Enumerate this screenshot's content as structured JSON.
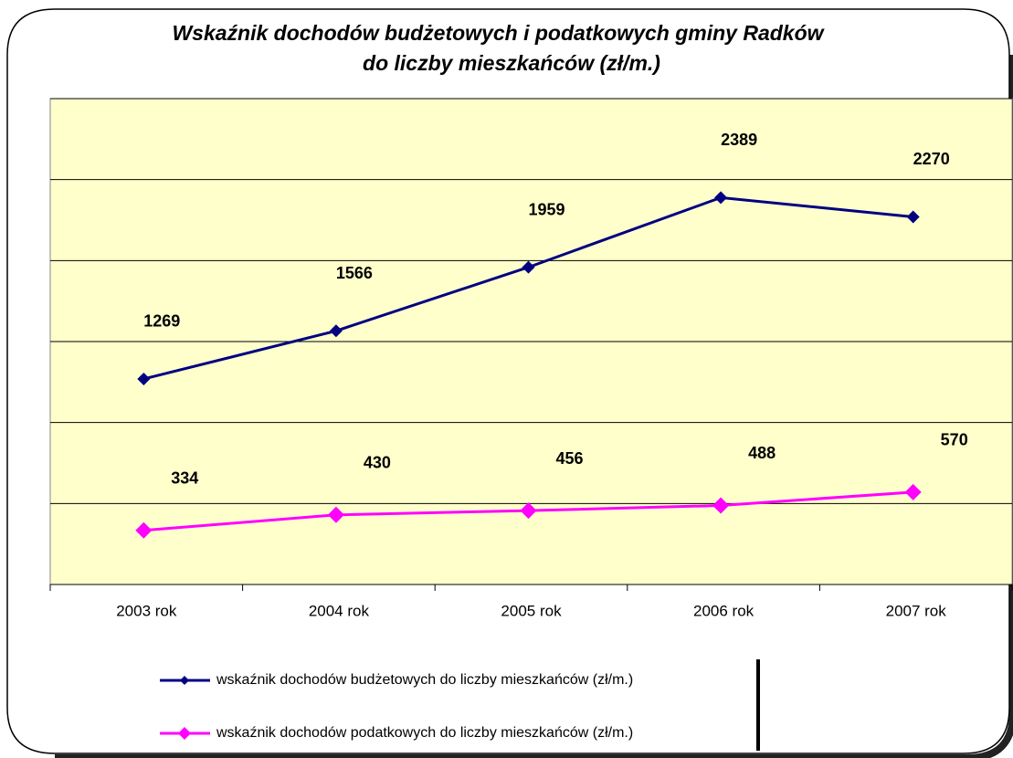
{
  "chart_data": {
    "type": "line",
    "title": [
      "Wskaźnik dochodów budżetowych i podatkowych gminy Radków",
      "do liczby mieszkańców  (zł/m.)"
    ],
    "categories": [
      "2003 rok",
      "2004 rok",
      "2005 rok",
      "2006 rok",
      "2007 rok"
    ],
    "series": [
      {
        "name": "wskaźnik dochodów  budżetowych do liczby mieszkańców  (zł/m.)",
        "color": "#000080",
        "values": [
          1269,
          1566,
          1959,
          2389,
          2270
        ]
      },
      {
        "name": "wskaźnik dochodów  podatkowych do liczby mieszkańców  (zł/m.)",
        "color": "#ff00ff",
        "values": [
          334,
          430,
          456,
          488,
          570
        ]
      }
    ],
    "ylim": [
      0,
      3000
    ],
    "yticks": [
      0,
      500,
      1000,
      1500,
      2000,
      2500,
      3000
    ],
    "grid": true,
    "legend": "bottom",
    "background": "#ffffcc"
  }
}
